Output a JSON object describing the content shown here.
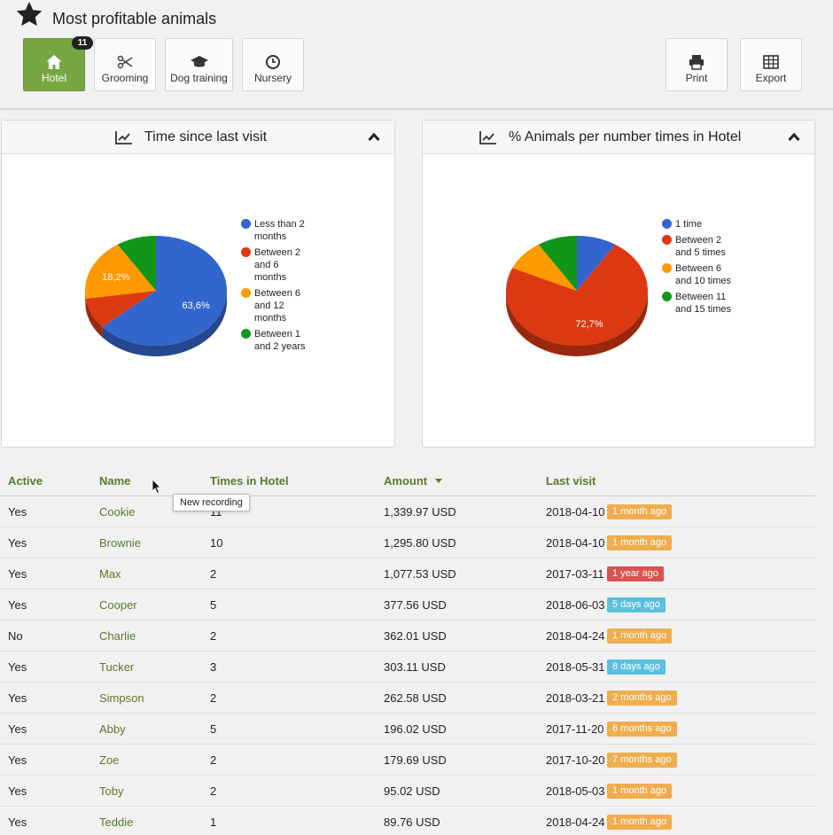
{
  "header": {
    "title": "Most profitable animals",
    "icon": "star-icon",
    "tabs": [
      {
        "label": "Hotel",
        "icon": "home-icon",
        "active": true,
        "badge": "11"
      },
      {
        "label": "Grooming",
        "icon": "scissors-icon"
      },
      {
        "label": "Dog training",
        "icon": "graduation-cap-icon"
      },
      {
        "label": "Nursery",
        "icon": "clock-icon"
      }
    ],
    "actions": [
      {
        "label": "Print",
        "icon": "print-icon"
      },
      {
        "label": "Export",
        "icon": "table-icon"
      }
    ]
  },
  "panels": [
    {
      "title": "Time since last visit",
      "icon": "line-chart-icon",
      "collapse_icon": "chevron-up-icon"
    },
    {
      "title": "% Animals per number times in Hotel",
      "icon": "line-chart-icon",
      "collapse_icon": "chevron-up-icon"
    }
  ],
  "chart_data": [
    {
      "type": "pie",
      "title": "Time since last visit",
      "categories": [
        "Less than 2 months",
        "Between 2 and 6 months",
        "Between 6 and 12 months",
        "Between 1 and 2 years"
      ],
      "values": [
        63.6,
        9.1,
        18.2,
        9.1
      ],
      "data_labels": [
        "63,6%",
        "",
        "18,2%",
        ""
      ],
      "colors": [
        "#3366cc",
        "#dc3912",
        "#ff9900",
        "#109618"
      ],
      "legend": [
        "Less than 2",
        "months",
        "Between 2",
        "and 6",
        "months",
        "Between 6",
        "and 12",
        "month",
        "Between 1",
        "and 2 years"
      ],
      "legend_position": "right"
    },
    {
      "type": "pie",
      "title": "% Animals per number times in Hotel",
      "categories": [
        "1 time",
        "Between 2 and 5 times",
        "Between 6 and 10 times",
        "Between 11 and 15 times"
      ],
      "values": [
        9.1,
        72.7,
        9.1,
        9.1
      ],
      "data_labels": [
        "",
        "72,7%",
        "",
        ""
      ],
      "colors": [
        "#3366cc",
        "#dc3912",
        "#ff9900",
        "#109618"
      ],
      "legend": [
        "1 time",
        "Between 2",
        "and 5 times",
        "Between 6",
        "and 10 times",
        "Between 11",
        "and 15 times"
      ],
      "legend_position": "right"
    }
  ],
  "table": {
    "columns": [
      "Active",
      "Name",
      "Times in Hotel",
      "Amount",
      "Last visit"
    ],
    "sorted_by": "Amount",
    "rows": [
      {
        "active": "Yes",
        "name": "Cookie",
        "times": "11",
        "amount": "1,339.97 USD",
        "date": "2018-04-10",
        "ago": "1 month ago",
        "color": "#f0ad4e"
      },
      {
        "active": "Yes",
        "name": "Brownie",
        "times": "10",
        "amount": "1,295.80 USD",
        "date": "2018-04-10",
        "ago": "1 month ago",
        "color": "#f0ad4e"
      },
      {
        "active": "Yes",
        "name": "Max",
        "times": "2",
        "amount": "1,077.53 USD",
        "date": "2017-03-11",
        "ago": "1 year ago",
        "color": "#d9534f"
      },
      {
        "active": "Yes",
        "name": "Cooper",
        "times": "5",
        "amount": "377.56 USD",
        "date": "2018-06-03",
        "ago": "5 days ago",
        "color": "#5bc0de"
      },
      {
        "active": "No",
        "name": "Charlie",
        "times": "2",
        "amount": "362.01 USD",
        "date": "2018-04-24",
        "ago": "1 month ago",
        "color": "#f0ad4e"
      },
      {
        "active": "Yes",
        "name": "Tucker",
        "times": "3",
        "amount": "303.11 USD",
        "date": "2018-05-31",
        "ago": "8 days ago",
        "color": "#5bc0de"
      },
      {
        "active": "Yes",
        "name": "Simpson",
        "times": "2",
        "amount": "262.58 USD",
        "date": "2018-03-21",
        "ago": "2 months ago",
        "color": "#f0ad4e"
      },
      {
        "active": "Yes",
        "name": "Abby",
        "times": "5",
        "amount": "196.02 USD",
        "date": "2017-11-20",
        "ago": "6 months ago",
        "color": "#f0ad4e"
      },
      {
        "active": "Yes",
        "name": "Zoe",
        "times": "2",
        "amount": "179.69 USD",
        "date": "2017-10-20",
        "ago": "7 months ago",
        "color": "#f0ad4e"
      },
      {
        "active": "Yes",
        "name": "Toby",
        "times": "2",
        "amount": "95.02 USD",
        "date": "2018-05-03",
        "ago": "1 month ago",
        "color": "#f0ad4e"
      },
      {
        "active": "Yes",
        "name": "Teddie",
        "times": "1",
        "amount": "89.76 USD",
        "date": "2018-04-24",
        "ago": "1 month ago",
        "color": "#f0ad4e"
      }
    ]
  },
  "tooltip": "New recording"
}
